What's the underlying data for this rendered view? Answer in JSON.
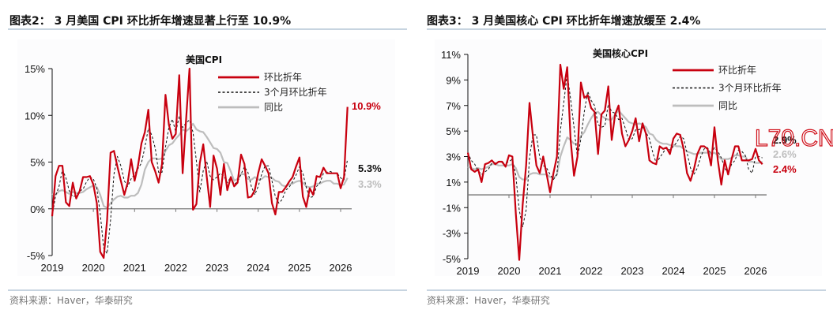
{
  "colors": {
    "mom": "#c8000f",
    "three_month": "#111111",
    "yoy": "#bdbdbd",
    "rule": "#8fa8c0"
  },
  "watermark": "L70.CN",
  "chart_data": [
    {
      "type": "line",
      "header": "图表2：  3 月美国 CPI 环比折年增速显著上行至 10.9%",
      "title": "美国CPI",
      "source": "资料来源：Haver，华泰研究",
      "ylim": [
        -5,
        15
      ],
      "yticks": [
        -5,
        0,
        5,
        10,
        15
      ],
      "ytick_labels": [
        "-5%",
        "0%",
        "5%",
        "10%",
        "15%"
      ],
      "xticks": [
        "2019",
        "2020",
        "2021",
        "2022",
        "2023",
        "2024",
        "2025",
        "2026"
      ],
      "x_start": "2019-01",
      "x_end": "2026-03",
      "frequency": "monthly",
      "legend": [
        "环比折年",
        "3个月环比折年",
        "同比"
      ],
      "legend_placement": "top-right",
      "end_labels": [
        "10.9%",
        "5.3%",
        "3.3%"
      ],
      "series": [
        {
          "name": "环比折年",
          "values": [
            -0.8,
            3.5,
            4.6,
            4.6,
            0.7,
            0.3,
            2.8,
            1.1,
            1.9,
            3.4,
            3.4,
            3.5,
            2.6,
            0.6,
            -4.6,
            -8.5,
            -1.2,
            6.0,
            6.2,
            4.5,
            3.0,
            1.5,
            2.8,
            5.3,
            3.0,
            4.6,
            7.0,
            8.2,
            10.6,
            5.0,
            4.0,
            2.8,
            4.8,
            12.2,
            9.0,
            7.5,
            8.0,
            14.3,
            3.8,
            9.6,
            15.0,
            -0.1,
            0.5,
            4.9,
            6.9,
            3.5,
            0.2,
            5.7,
            4.3,
            1.5,
            4.8,
            2.0,
            3.4,
            2.4,
            2.8,
            5.8,
            4.8,
            1.2,
            1.3,
            2.0,
            3.8,
            5.3,
            4.6,
            3.8,
            0.6,
            -0.6,
            1.8,
            1.8,
            2.3,
            2.9,
            3.4,
            4.5,
            5.5,
            1.3,
            0.2,
            2.2,
            1.5,
            3.5,
            3.4,
            4.4,
            3.8,
            3.8,
            3.8,
            3.8,
            2.2,
            3.4,
            10.9
          ]
        },
        {
          "name": "3个月环比折年",
          "values": [
            -0.8,
            1.4,
            2.4,
            4.2,
            3.3,
            1.9,
            1.3,
            1.4,
            1.9,
            2.1,
            2.9,
            3.4,
            3.2,
            2.2,
            -0.5,
            -4.2,
            -4.8,
            -1.2,
            3.7,
            5.6,
            4.6,
            3.0,
            2.4,
            3.2,
            3.7,
            4.3,
            4.9,
            6.6,
            8.6,
            7.9,
            6.5,
            3.9,
            3.9,
            6.6,
            8.7,
            9.6,
            8.2,
            9.9,
            8.7,
            9.2,
            9.5,
            8.2,
            5.1,
            1.8,
            4.1,
            5.1,
            3.5,
            3.1,
            3.4,
            3.8,
            3.5,
            2.8,
            3.4,
            2.6,
            2.9,
            3.7,
            4.5,
            3.9,
            2.4,
            1.5,
            2.4,
            3.7,
            4.6,
            4.6,
            3.0,
            1.3,
            0.6,
            1.0,
            2.0,
            2.3,
            2.9,
            3.6,
            4.5,
            3.8,
            2.3,
            1.2,
            1.3,
            2.4,
            2.8,
            3.8,
            3.9,
            4.0,
            3.8,
            3.8,
            3.3,
            3.1,
            5.3
          ]
        },
        {
          "name": "同比",
          "values": [
            1.6,
            1.5,
            1.9,
            2.0,
            1.8,
            1.6,
            1.8,
            1.7,
            1.7,
            1.8,
            2.1,
            2.3,
            2.5,
            2.3,
            1.5,
            0.3,
            0.1,
            0.6,
            1.0,
            1.3,
            1.4,
            1.2,
            1.2,
            1.4,
            1.4,
            1.7,
            2.6,
            4.2,
            5.0,
            5.4,
            5.4,
            5.3,
            5.4,
            6.2,
            6.8,
            7.0,
            7.5,
            7.9,
            8.5,
            8.3,
            8.6,
            9.1,
            8.5,
            8.3,
            8.2,
            7.7,
            7.1,
            6.5,
            6.4,
            6.0,
            5.0,
            4.9,
            4.0,
            3.0,
            3.2,
            3.7,
            3.7,
            3.2,
            3.1,
            3.4,
            3.1,
            3.2,
            3.5,
            3.4,
            3.3,
            3.0,
            2.9,
            2.5,
            2.4,
            2.6,
            2.7,
            2.9,
            3.0,
            2.8,
            2.4,
            2.3,
            2.4,
            2.7,
            2.7,
            2.9,
            3.0,
            3.0,
            2.7,
            2.7,
            2.5,
            2.6,
            3.3
          ]
        }
      ]
    },
    {
      "type": "line",
      "header": "图表3：  3 月美国核心 CPI 环比折年增速放缓至 2.4%",
      "title": "美国核心CPI",
      "source": "资料来源：Haver，华泰研究",
      "ylim": [
        -5,
        11
      ],
      "yticks": [
        -5,
        -3,
        -1,
        1,
        3,
        5,
        7,
        9,
        11
      ],
      "ytick_labels": [
        "-5%",
        "-3%",
        "-1%",
        "1%",
        "3%",
        "5%",
        "7%",
        "9%",
        "11%"
      ],
      "xticks": [
        "2019",
        "2020",
        "2021",
        "2022",
        "2023",
        "2024",
        "2025",
        "2026"
      ],
      "x_start": "2019-01",
      "x_end": "2026-03",
      "frequency": "monthly",
      "legend": [
        "环比折年",
        "3个月环比折年",
        "同比"
      ],
      "legend_placement": "top-right",
      "end_labels": [
        "2.9%",
        "2.6%",
        "2.4%"
      ],
      "series": [
        {
          "name": "环比折年",
          "values": [
            3.3,
            2.0,
            1.8,
            2.0,
            1.0,
            2.4,
            2.5,
            2.7,
            2.4,
            2.6,
            2.6,
            2.2,
            3.1,
            3.0,
            -1.5,
            -5.1,
            -0.8,
            2.3,
            7.2,
            4.6,
            2.3,
            1.7,
            3.0,
            1.6,
            0.2,
            1.7,
            3.0,
            10.2,
            8.3,
            10.0,
            4.3,
            1.5,
            3.0,
            8.8,
            7.6,
            7.8,
            6.8,
            6.5,
            3.2,
            6.3,
            6.6,
            8.5,
            4.3,
            6.3,
            7.0,
            4.8,
            3.8,
            4.3,
            5.0,
            6.0,
            4.2,
            5.6,
            4.8,
            2.7,
            2.5,
            2.4,
            3.8,
            3.6,
            3.7,
            3.2,
            4.4,
            4.8,
            4.7,
            3.6,
            1.7,
            1.1,
            2.0,
            3.2,
            3.8,
            3.8,
            3.6,
            2.3,
            5.3,
            2.7,
            0.8,
            2.7,
            1.6,
            2.8,
            3.8,
            3.8,
            2.7,
            2.7,
            2.7,
            2.8,
            3.6,
            2.7,
            2.4
          ]
        },
        {
          "name": "3个月环比折年",
          "values": [
            3.3,
            2.7,
            2.4,
            1.9,
            1.6,
            1.8,
            2.0,
            2.5,
            2.5,
            2.6,
            2.5,
            2.5,
            2.6,
            2.8,
            1.5,
            -1.2,
            -2.5,
            -1.2,
            2.9,
            4.7,
            4.7,
            2.9,
            2.3,
            2.1,
            1.6,
            1.2,
            1.6,
            5.0,
            7.2,
            9.5,
            7.5,
            5.3,
            2.9,
            4.4,
            6.5,
            8.1,
            7.4,
            7.0,
            5.5,
            5.3,
            5.4,
            7.1,
            6.5,
            6.4,
            5.9,
            6.0,
            5.2,
            4.3,
            4.4,
            5.1,
            5.1,
            5.3,
            4.9,
            4.4,
            3.3,
            2.5,
            2.9,
            3.3,
            3.7,
            3.5,
            3.8,
            4.1,
            4.6,
            4.4,
            3.3,
            2.1,
            1.6,
            2.1,
            3.0,
            3.6,
            3.7,
            3.2,
            3.7,
            3.4,
            2.9,
            2.1,
            1.7,
            2.4,
            2.7,
            3.5,
            3.4,
            3.1,
            2.0,
            1.7,
            3.0,
            3.0,
            2.9
          ]
        },
        {
          "name": "同比",
          "values": [
            2.2,
            2.1,
            2.0,
            2.1,
            2.0,
            2.1,
            2.2,
            2.4,
            2.4,
            2.3,
            2.3,
            2.3,
            2.3,
            2.4,
            2.1,
            1.4,
            1.2,
            1.2,
            1.6,
            1.7,
            1.7,
            1.6,
            1.6,
            1.6,
            1.4,
            1.3,
            1.6,
            3.0,
            3.8,
            4.5,
            4.3,
            4.0,
            4.0,
            4.6,
            4.9,
            5.5,
            6.0,
            6.4,
            6.5,
            6.2,
            6.0,
            5.9,
            5.9,
            6.3,
            6.6,
            6.3,
            6.0,
            5.7,
            5.6,
            5.5,
            5.6,
            5.5,
            5.3,
            4.8,
            4.7,
            4.3,
            4.1,
            4.0,
            4.0,
            3.9,
            3.9,
            3.8,
            3.8,
            3.6,
            3.4,
            3.3,
            3.2,
            3.2,
            3.3,
            3.3,
            3.3,
            3.2,
            3.3,
            3.1,
            2.8,
            2.8,
            2.8,
            2.9,
            3.1,
            3.1,
            3.0,
            3.0,
            2.6,
            2.6,
            2.5,
            2.5,
            2.6
          ]
        }
      ]
    }
  ]
}
